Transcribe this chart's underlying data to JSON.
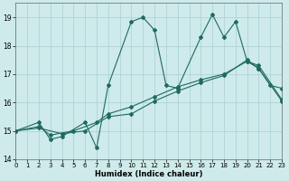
{
  "xlabel": "Humidex (Indice chaleur)",
  "xlim": [
    0,
    23
  ],
  "ylim": [
    14,
    19.5
  ],
  "yticks": [
    14,
    15,
    16,
    17,
    18,
    19
  ],
  "xticks": [
    0,
    1,
    2,
    3,
    4,
    5,
    6,
    7,
    8,
    9,
    10,
    11,
    12,
    13,
    14,
    15,
    16,
    17,
    18,
    19,
    20,
    21,
    22,
    23
  ],
  "bg_color": "#ceeaea",
  "grid_color": "#aacfcf",
  "line_color": "#1e6b5e",
  "line1_x": [
    0,
    2,
    3,
    4,
    6,
    7,
    8,
    10,
    11,
    12,
    13,
    14,
    16,
    17,
    18,
    19,
    20,
    21,
    22,
    23
  ],
  "line1_y": [
    15.0,
    15.3,
    14.7,
    14.8,
    15.3,
    14.4,
    16.6,
    18.85,
    19.0,
    18.55,
    16.6,
    16.5,
    18.3,
    19.1,
    18.3,
    18.85,
    17.45,
    17.2,
    16.6,
    16.5
  ],
  "line2_x": [
    0,
    2,
    3,
    5,
    7,
    8,
    10,
    12,
    14,
    16,
    18,
    20,
    21,
    23
  ],
  "line2_y": [
    15.0,
    15.15,
    14.85,
    15.0,
    15.3,
    15.6,
    15.85,
    16.2,
    16.55,
    16.8,
    17.0,
    17.45,
    17.3,
    16.1
  ],
  "line3_x": [
    0,
    2,
    4,
    6,
    8,
    10,
    12,
    14,
    16,
    18,
    20,
    21,
    23
  ],
  "line3_y": [
    15.0,
    15.1,
    14.9,
    15.0,
    15.5,
    15.6,
    16.05,
    16.4,
    16.7,
    16.95,
    17.5,
    17.2,
    16.05
  ]
}
